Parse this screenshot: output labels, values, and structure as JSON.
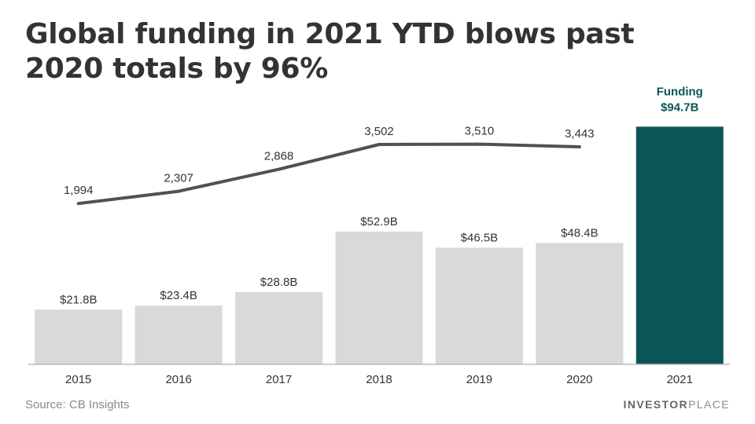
{
  "title": "Global funding in 2021 YTD blows past 2020 totals by 96%",
  "source": "Source: CB Insights",
  "brand": {
    "part1": "INVESTOR",
    "part2": "PLACE"
  },
  "chart_data": {
    "type": "bar",
    "categories": [
      "2015",
      "2016",
      "2017",
      "2018",
      "2019",
      "2020",
      "2021"
    ],
    "series": [
      {
        "name": "Funding",
        "type": "bar",
        "values": [
          21.8,
          23.4,
          28.8,
          52.9,
          46.5,
          48.4,
          94.7
        ],
        "labels": [
          "$21.8B",
          "$23.4B",
          "$28.8B",
          "$52.9B",
          "$46.5B",
          "$48.4B",
          "$94.7B"
        ]
      },
      {
        "type": "line",
        "values": [
          1994,
          2307,
          2868,
          3502,
          3510,
          3443,
          null
        ],
        "labels": [
          "1,994",
          "2,307",
          "2,868",
          "3,502",
          "3,510",
          "3,443",
          null
        ]
      }
    ],
    "highlight": {
      "category": "2021",
      "label": "Funding"
    },
    "colors": {
      "bar": "#d9d9d9",
      "bar_highlight": "#0b5556",
      "line": "#4d5257",
      "label": "#333333",
      "highlight_label": "#0b5556",
      "axis": "#bbbbbb"
    },
    "grid": false,
    "legend": "none"
  }
}
